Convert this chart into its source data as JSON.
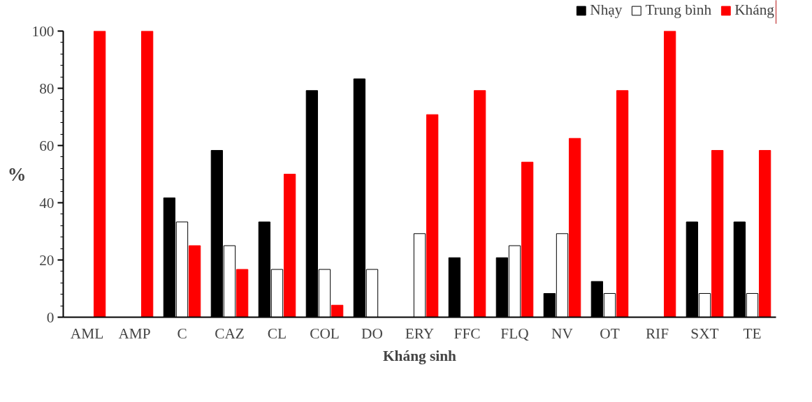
{
  "chart_data": {
    "type": "bar",
    "xlabel": "Kháng sinh",
    "ylabel": "%",
    "categories": [
      "AML",
      "AMP",
      "C",
      "CAZ",
      "CL",
      "COL",
      "DO",
      "ERY",
      "FFC",
      "FLQ",
      "NV",
      "OT",
      "RIF",
      "SXT",
      "TE"
    ],
    "series": [
      {
        "name": "Nhạy",
        "color": "#000000",
        "values": [
          0,
          0,
          41.7,
          58.3,
          33.3,
          79.2,
          83.3,
          0,
          20.8,
          20.8,
          8.3,
          12.5,
          0,
          33.3,
          33.3
        ]
      },
      {
        "name": "Trung bình",
        "color": "#ffffff",
        "values": [
          0,
          0,
          33.3,
          25,
          16.7,
          16.7,
          16.7,
          29.2,
          0,
          25,
          29.2,
          8.3,
          0,
          8.3,
          8.3
        ]
      },
      {
        "name": "Kháng",
        "color": "#ff0000",
        "values": [
          100,
          100,
          25,
          16.7,
          50,
          4.2,
          0,
          70.8,
          79.2,
          54.2,
          62.5,
          79.2,
          100,
          58.3,
          58.3
        ]
      }
    ],
    "ylim": [
      0,
      100
    ],
    "yticks": [
      0,
      20,
      40,
      60,
      80,
      100
    ],
    "grid": false,
    "legend": "top right"
  }
}
